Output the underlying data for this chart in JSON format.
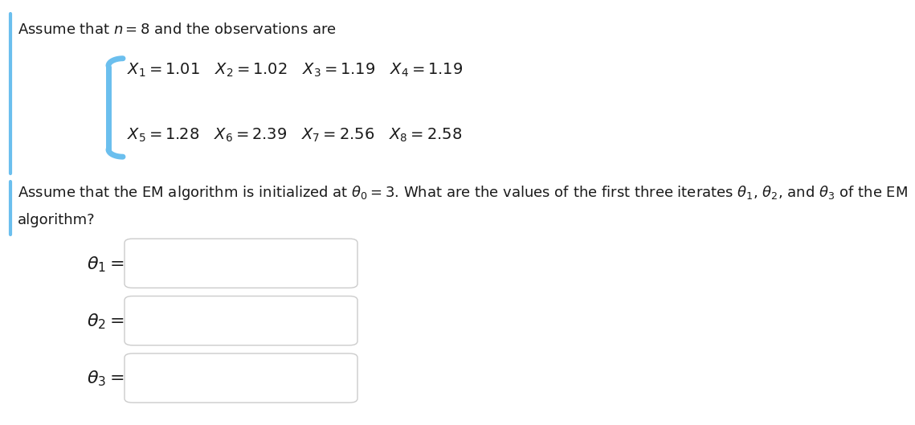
{
  "bg_color": "#ffffff",
  "text_color": "#1a1a1a",
  "accent_color": "#6bbfee",
  "line1_text": "Assume that $n = 8$ and the observations are",
  "obs_line1": "$X_1 = 1.01 \\quad X_2 = 1.02 \\quad X_3 = 1.19 \\quad X_4 = 1.19$",
  "obs_line2": "$X_5 = 1.28 \\quad X_6 = 2.39 \\quad X_7 = 2.56 \\quad X_8 = 2.58$",
  "line2_text": "Assume that the EM algorithm is initialized at $\\theta_0 = 3$. What are the values of the first three iterates $\\theta_1$, $\\theta_2$, and $\\theta_3$ of the EM",
  "line2b_text": "algorithm?",
  "label1": "$\\theta_1 =$",
  "label2": "$\\theta_2 =$",
  "label3": "$\\theta_3 =$",
  "font_size_main": 13,
  "font_size_obs": 14,
  "font_size_labels": 16,
  "left_bar_color": "#6bbfee",
  "obs_block_color": "#6bbfee",
  "box_edge_color": "#cccccc",
  "box_face_color": "#ffffff"
}
